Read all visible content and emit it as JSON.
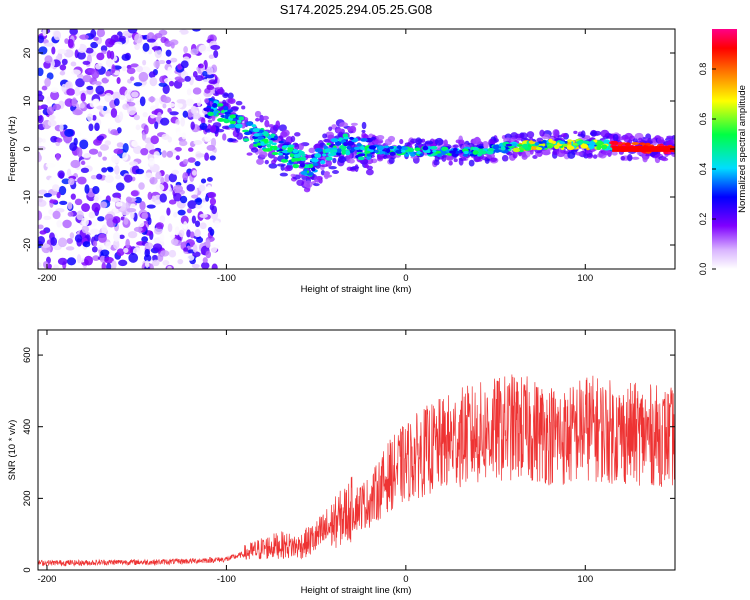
{
  "figure_title": "S174.2025.294.05.25.G08",
  "colors": {
    "snr_line": "#ee3333",
    "axis": "#000000"
  },
  "chart_data": [
    {
      "type": "heatmap",
      "panel": "top",
      "title": "S174.2025.294.05.25.G08",
      "xlabel": "Height of straight line (km)",
      "ylabel": "Frequency (Hz)",
      "xlim": [
        -205,
        150
      ],
      "ylim": [
        -25,
        25
      ],
      "xticks": [
        -200,
        -100,
        0,
        100
      ],
      "yticks": [
        -20,
        -10,
        0,
        10,
        20
      ],
      "colorbar": {
        "label": "Normalized spectral amplitude",
        "range": [
          0,
          0.96
        ],
        "ticks": [
          "0.0",
          "0.2",
          "0.4",
          "0.6",
          "0.8"
        ],
        "colormap": "rainbow (white-violet-blue-cyan-green-yellow-red-magenta)"
      },
      "ridge": {
        "description": "Dominant frequency ridge versus height",
        "points": [
          [
            -112,
            9
          ],
          [
            -100,
            7
          ],
          [
            -90,
            4
          ],
          [
            -80,
            2
          ],
          [
            -70,
            0
          ],
          [
            -60,
            -2
          ],
          [
            -55,
            -4
          ],
          [
            -45,
            -1
          ],
          [
            -35,
            1
          ],
          [
            -25,
            0
          ],
          [
            -15,
            0
          ],
          [
            0,
            -0.5
          ],
          [
            20,
            -0.5
          ],
          [
            40,
            -0.5
          ],
          [
            60,
            0.5
          ],
          [
            80,
            1
          ],
          [
            100,
            1
          ],
          [
            120,
            0.5
          ],
          [
            150,
            0
          ]
        ],
        "peak_amplitude_region_km": [
          115,
          150
        ],
        "noise_region_km": [
          -205,
          -100
        ]
      }
    },
    {
      "type": "line",
      "panel": "bottom",
      "xlabel": "Height of straight line (km)",
      "ylabel": "SNR (10 * v/v)",
      "xlim": [
        -205,
        150
      ],
      "ylim": [
        0,
        670
      ],
      "xticks": [
        -200,
        -100,
        0,
        100
      ],
      "yticks": [
        0,
        200,
        400,
        600
      ],
      "series": [
        {
          "name": "SNR",
          "x": [
            -205,
            -180,
            -160,
            -140,
            -120,
            -100,
            -90,
            -80,
            -70,
            -60,
            -50,
            -40,
            -30,
            -20,
            -10,
            0,
            10,
            20,
            30,
            40,
            50,
            60,
            70,
            80,
            90,
            100,
            110,
            120,
            130,
            140,
            150
          ],
          "values": [
            20,
            20,
            22,
            22,
            25,
            30,
            45,
            60,
            70,
            65,
            90,
            130,
            170,
            190,
            260,
            300,
            330,
            350,
            370,
            380,
            390,
            400,
            390,
            380,
            370,
            400,
            390,
            380,
            380,
            375,
            370
          ]
        }
      ]
    }
  ]
}
